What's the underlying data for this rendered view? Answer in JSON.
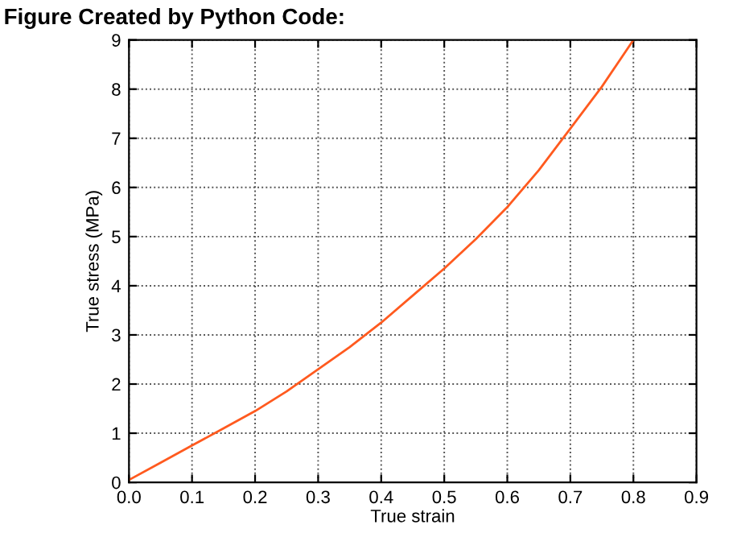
{
  "chart_data": {
    "type": "line",
    "title": "Figure Created by Python Code:",
    "xlabel": "True strain",
    "ylabel": "True stress (MPa)",
    "x": [
      0.0,
      0.05,
      0.1,
      0.15,
      0.2,
      0.25,
      0.3,
      0.35,
      0.4,
      0.45,
      0.5,
      0.55,
      0.6,
      0.65,
      0.7,
      0.75,
      0.8
    ],
    "series": [
      {
        "color": "#ff5a1f",
        "values": [
          0.05,
          0.4,
          0.75,
          1.1,
          1.45,
          1.85,
          2.3,
          2.75,
          3.25,
          3.8,
          4.35,
          4.95,
          5.6,
          6.35,
          7.2,
          8.05,
          9.0
        ]
      }
    ],
    "xlim": [
      0,
      0.9
    ],
    "ylim": [
      0,
      9
    ],
    "xticks": [
      {
        "value": 0,
        "label": "0.0"
      },
      0.1,
      0.2,
      0.3,
      0.4,
      0.5,
      0.6,
      0.7,
      0.8,
      0.9
    ],
    "yticks": [
      0,
      1,
      2,
      3,
      4,
      5,
      6,
      7,
      8,
      9
    ],
    "grid": true,
    "line_style": "solid"
  }
}
